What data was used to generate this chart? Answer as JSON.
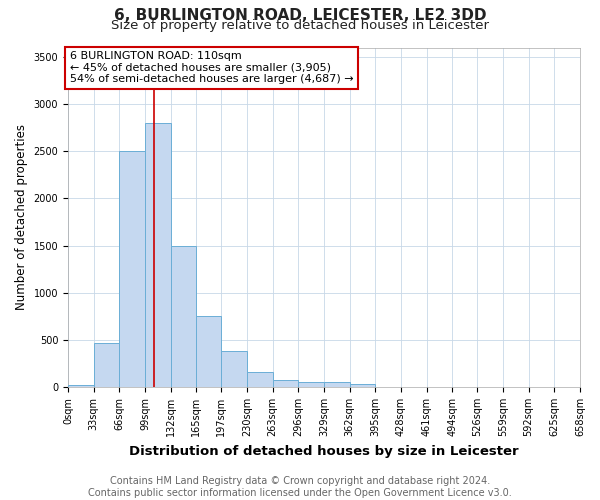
{
  "title1": "6, BURLINGTON ROAD, LEICESTER, LE2 3DD",
  "title2": "Size of property relative to detached houses in Leicester",
  "xlabel": "Distribution of detached houses by size in Leicester",
  "ylabel": "Number of detached properties",
  "bar_edges": [
    0,
    33,
    66,
    99,
    132,
    165,
    197,
    230,
    263,
    296,
    329,
    362,
    395,
    428,
    461,
    494,
    526,
    559,
    592,
    625,
    658
  ],
  "bar_heights": [
    25,
    470,
    2500,
    2800,
    1500,
    750,
    380,
    155,
    75,
    50,
    50,
    30,
    0,
    0,
    0,
    0,
    0,
    0,
    0,
    0
  ],
  "bar_color": "#c5d8f0",
  "bar_edge_color": "#6baed6",
  "red_line_x": 110,
  "red_line_color": "#cc0000",
  "annotation_text": "6 BURLINGTON ROAD: 110sqm\n← 45% of detached houses are smaller (3,905)\n54% of semi-detached houses are larger (4,687) →",
  "annotation_box_color": "#cc0000",
  "ylim": [
    0,
    3600
  ],
  "yticks": [
    0,
    500,
    1000,
    1500,
    2000,
    2500,
    3000,
    3500
  ],
  "tick_labels": [
    "0sqm",
    "33sqm",
    "66sqm",
    "99sqm",
    "132sqm",
    "165sqm",
    "197sqm",
    "230sqm",
    "263sqm",
    "296sqm",
    "329sqm",
    "362sqm",
    "395sqm",
    "428sqm",
    "461sqm",
    "494sqm",
    "526sqm",
    "559sqm",
    "592sqm",
    "625sqm",
    "658sqm"
  ],
  "footer_text": "Contains HM Land Registry data © Crown copyright and database right 2024.\nContains public sector information licensed under the Open Government Licence v3.0.",
  "bg_color": "#ffffff",
  "plot_bg_color": "#ffffff",
  "grid_color": "#c8d8e8",
  "title1_fontsize": 11,
  "title2_fontsize": 9.5,
  "xlabel_fontsize": 9.5,
  "ylabel_fontsize": 8.5,
  "tick_fontsize": 7,
  "footer_fontsize": 7,
  "annotation_fontsize": 8
}
